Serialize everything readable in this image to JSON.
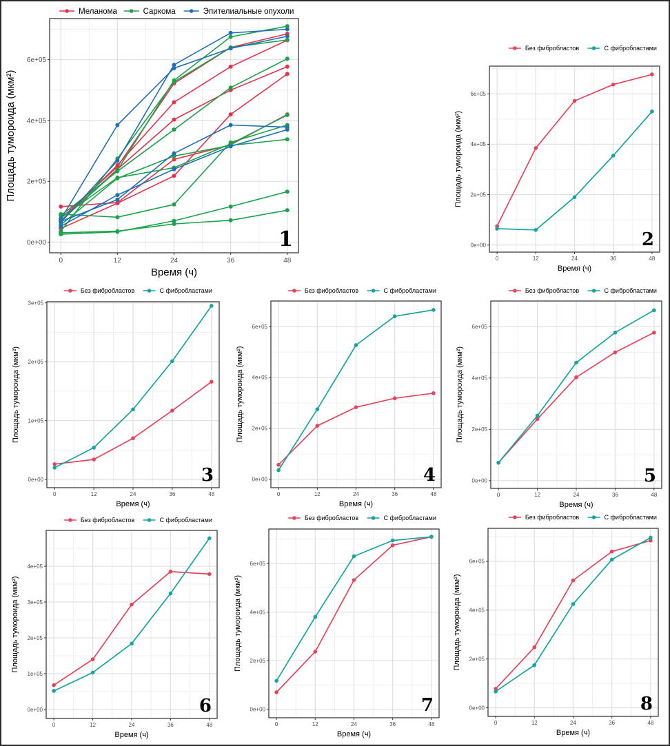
{
  "chart_data": [
    {
      "id": "1",
      "type": "line",
      "panel_label": "1",
      "xlabel": "Время (ч)",
      "ylabel": "Площадь тумороида (мкм²)",
      "x": [
        0,
        12,
        24,
        36,
        48
      ],
      "xticks": [
        "0",
        "12",
        "24",
        "36",
        "48"
      ],
      "yticks": [
        {
          "v": 0,
          "label": "0e+00"
        },
        {
          "v": 200000,
          "label": "2e+05"
        },
        {
          "v": 400000,
          "label": "4e+05"
        },
        {
          "v": 600000,
          "label": "6e+05"
        }
      ],
      "ylim": [
        -35000,
        735000
      ],
      "grid": true,
      "legend": [
        {
          "name": "Меланома",
          "color": "#e8314b"
        },
        {
          "name": "Саркома",
          "color": "#1aa34a"
        },
        {
          "name": "Эпителиальные опухоли",
          "color": "#1f6fb8"
        }
      ],
      "legend_position": "top",
      "series": [
        {
          "group": "Меланома",
          "values": [
            70000,
            240000,
            403000,
            500000,
            577000
          ]
        },
        {
          "group": "Меланома",
          "values": [
            70000,
            253000,
            460000,
            577000,
            664000
          ]
        },
        {
          "group": "Меланома",
          "values": [
            78000,
            248000,
            522000,
            640000,
            685000
          ]
        },
        {
          "group": "Меланома",
          "values": [
            45000,
            128000,
            218000,
            420000,
            553000
          ]
        },
        {
          "group": "Меланома",
          "values": [
            117000,
            130000,
            272000,
            320000,
            420000
          ]
        },
        {
          "group": "Саркома",
          "values": [
            26000,
            34000,
            70000,
            117000,
            166000
          ]
        },
        {
          "group": "Саркома",
          "values": [
            31000,
            36000,
            60000,
            72000,
            105000
          ]
        },
        {
          "group": "Саркома",
          "values": [
            57000,
            210000,
            283000,
            318000,
            338000
          ]
        },
        {
          "group": "Саркома",
          "values": [
            36000,
            275000,
            527000,
            640000,
            665000
          ]
        },
        {
          "group": "Саркома",
          "values": [
            70000,
            237000,
            532000,
            675000,
            710000
          ]
        },
        {
          "group": "Саркома",
          "values": [
            88000,
            233000,
            370000,
            508000,
            603000
          ]
        },
        {
          "group": "Саркома",
          "values": [
            92000,
            82000,
            124000,
            328000,
            385000
          ]
        },
        {
          "group": "Саркома",
          "values": [
            80000,
            212000,
            245000,
            323000,
            418000
          ]
        },
        {
          "group": "Эпителиальные опухоли",
          "values": [
            75000,
            385000,
            572000,
            637000,
            677000
          ]
        },
        {
          "group": "Эпителиальные опухоли",
          "values": [
            65000,
            268000,
            583000,
            688000,
            700000
          ]
        },
        {
          "group": "Эпителиальные опухоли",
          "values": [
            68000,
            140000,
            292000,
            385000,
            378000
          ]
        },
        {
          "group": "Эпителиальные опухоли",
          "values": [
            52000,
            155000,
            240000,
            315000,
            370000
          ]
        }
      ]
    },
    {
      "id": "2",
      "type": "line",
      "panel_label": "2",
      "xlabel": "Время (ч)",
      "ylabel": "Площадь тумороида (мкм²)",
      "x": [
        0,
        12,
        24,
        36,
        48
      ],
      "xticks": [
        "0",
        "12",
        "24",
        "36",
        "48"
      ],
      "yticks": [
        {
          "v": 0,
          "label": "0e+00"
        },
        {
          "v": 200000,
          "label": "2e+05"
        },
        {
          "v": 400000,
          "label": "4e+05"
        },
        {
          "v": 600000,
          "label": "6e+05"
        }
      ],
      "ylim": [
        -28000,
        710000
      ],
      "grid": true,
      "legend_position": "top",
      "legend": [
        {
          "name": "Без фибробластов",
          "color": "#e8435a"
        },
        {
          "name": "С фибробластами",
          "color": "#14a5a0"
        }
      ],
      "series": [
        {
          "name": "Без фибробластов",
          "values": [
            75000,
            385000,
            572000,
            637000,
            677000
          ]
        },
        {
          "name": "С фибробластами",
          "values": [
            65000,
            60000,
            190000,
            355000,
            530000
          ]
        }
      ]
    },
    {
      "id": "3",
      "type": "line",
      "panel_label": "3",
      "xlabel": "Время (ч)",
      "ylabel": "Площадь тумороида (мкм²)",
      "x": [
        0,
        12,
        24,
        36,
        48
      ],
      "xticks": [
        "0",
        "12",
        "24",
        "36",
        "48"
      ],
      "yticks": [
        {
          "v": 0,
          "label": "0e+00"
        },
        {
          "v": 100000,
          "label": "1e+05"
        },
        {
          "v": 200000,
          "label": "2e+05"
        },
        {
          "v": 300000,
          "label": "3e+05"
        }
      ],
      "ylim": [
        -14000,
        302000
      ],
      "grid": true,
      "legend_position": "top",
      "legend": [
        {
          "name": "Без фибробластов",
          "color": "#e8435a"
        },
        {
          "name": "С фибробластами",
          "color": "#14a5a0"
        }
      ],
      "series": [
        {
          "name": "Без фибробластов",
          "values": [
            26000,
            34000,
            70000,
            117000,
            166000
          ]
        },
        {
          "name": "С фибробластами",
          "values": [
            20000,
            54000,
            119000,
            201000,
            295000
          ]
        }
      ]
    },
    {
      "id": "4",
      "type": "line",
      "panel_label": "4",
      "xlabel": "Время (ч)",
      "ylabel": "Площадь тумороида (мкм²)",
      "x": [
        0,
        12,
        24,
        36,
        48
      ],
      "xticks": [
        "0",
        "12",
        "24",
        "36",
        "48"
      ],
      "yticks": [
        {
          "v": 0,
          "label": "0e+00"
        },
        {
          "v": 200000,
          "label": "2e+05"
        },
        {
          "v": 400000,
          "label": "4e+05"
        },
        {
          "v": 600000,
          "label": "6e+05"
        }
      ],
      "ylim": [
        -33000,
        700000
      ],
      "grid": true,
      "legend_position": "top",
      "legend": [
        {
          "name": "Без фибробластов",
          "color": "#e8435a"
        },
        {
          "name": "С фибробластами",
          "color": "#14a5a0"
        }
      ],
      "series": [
        {
          "name": "Без фибробластов",
          "values": [
            57000,
            210000,
            283000,
            318000,
            338000
          ]
        },
        {
          "name": "С фибробластами",
          "values": [
            36000,
            275000,
            527000,
            640000,
            665000
          ]
        }
      ]
    },
    {
      "id": "5",
      "type": "line",
      "panel_label": "5",
      "xlabel": "Время (ч)",
      "ylabel": "Площадь тумороида (мкм²)",
      "x": [
        0,
        12,
        24,
        36,
        48
      ],
      "xticks": [
        "0",
        "12",
        "24",
        "36",
        "48"
      ],
      "yticks": [
        {
          "v": 0,
          "label": "0e+00"
        },
        {
          "v": 200000,
          "label": "2e+05"
        },
        {
          "v": 400000,
          "label": "4e+05"
        },
        {
          "v": 600000,
          "label": "6e+05"
        }
      ],
      "ylim": [
        -30000,
        700000
      ],
      "grid": true,
      "legend_position": "top",
      "legend": [
        {
          "name": "Без фибробластов",
          "color": "#e8435a"
        },
        {
          "name": "С фибробластами",
          "color": "#14a5a0"
        }
      ],
      "series": [
        {
          "name": "Без фибробластов",
          "values": [
            70000,
            240000,
            403000,
            500000,
            577000
          ]
        },
        {
          "name": "С фибробластами",
          "values": [
            70000,
            253000,
            460000,
            577000,
            664000
          ]
        }
      ]
    },
    {
      "id": "6",
      "type": "line",
      "panel_label": "6",
      "xlabel": "Время (ч)",
      "ylabel": "Площадь тумороида (мкм²)",
      "x": [
        0,
        12,
        24,
        36,
        48
      ],
      "xticks": [
        "0",
        "12",
        "24",
        "36",
        "48"
      ],
      "yticks": [
        {
          "v": 0,
          "label": "0e+00"
        },
        {
          "v": 100000,
          "label": "1e+05"
        },
        {
          "v": 200000,
          "label": "2e+05"
        },
        {
          "v": 300000,
          "label": "3e+05"
        },
        {
          "v": 400000,
          "label": "4e+05"
        }
      ],
      "ylim": [
        -25000,
        500000
      ],
      "grid": true,
      "legend_position": "top",
      "legend": [
        {
          "name": "Без фибробластов",
          "color": "#e8435a"
        },
        {
          "name": "С фибробластами",
          "color": "#14a5a0"
        }
      ],
      "series": [
        {
          "name": "Без фибробластов",
          "values": [
            68000,
            140000,
            293000,
            385000,
            378000
          ]
        },
        {
          "name": "С фибробластами",
          "values": [
            52000,
            103000,
            184000,
            324000,
            478000
          ]
        }
      ]
    },
    {
      "id": "7",
      "type": "line",
      "panel_label": "7",
      "xlabel": "Время (ч)",
      "ylabel": "Площадь тумороида (мкм²)",
      "x": [
        0,
        12,
        24,
        36,
        48
      ],
      "xticks": [
        "0",
        "12",
        "24",
        "36",
        "48"
      ],
      "yticks": [
        {
          "v": 0,
          "label": "0e+00"
        },
        {
          "v": 200000,
          "label": "2e+05"
        },
        {
          "v": 400000,
          "label": "4e+05"
        },
        {
          "v": 600000,
          "label": "6e+05"
        }
      ],
      "ylim": [
        -35000,
        742000
      ],
      "grid": true,
      "legend_position": "top",
      "legend": [
        {
          "name": "Без фибробластов",
          "color": "#e8435a"
        },
        {
          "name": "С фибробластами",
          "color": "#14a5a0"
        }
      ],
      "series": [
        {
          "name": "Без фибробластов",
          "values": [
            70000,
            237000,
            532000,
            675000,
            710000
          ]
        },
        {
          "name": "С фибробластами",
          "values": [
            117000,
            380000,
            630000,
            695000,
            710000
          ]
        }
      ]
    },
    {
      "id": "8",
      "type": "line",
      "panel_label": "8",
      "xlabel": "Время (ч)",
      "ylabel": "Площадь тумороида (мкм²)",
      "x": [
        0,
        12,
        24,
        36,
        48
      ],
      "xticks": [
        "0",
        "12",
        "24",
        "36",
        "48"
      ],
      "yticks": [
        {
          "v": 0,
          "label": "0e+00"
        },
        {
          "v": 200000,
          "label": "2e+05"
        },
        {
          "v": 400000,
          "label": "4e+05"
        },
        {
          "v": 600000,
          "label": "6e+05"
        }
      ],
      "ylim": [
        -35000,
        735000
      ],
      "grid": true,
      "legend_position": "top",
      "legend": [
        {
          "name": "Без фибробластов",
          "color": "#e8435a"
        },
        {
          "name": "С фибробластами",
          "color": "#14a5a0"
        }
      ],
      "series": [
        {
          "name": "Без фибробластов",
          "values": [
            78000,
            248000,
            522000,
            640000,
            685000
          ]
        },
        {
          "name": "С фибробластами",
          "values": [
            67000,
            175000,
            425000,
            607000,
            697000
          ]
        }
      ]
    }
  ]
}
